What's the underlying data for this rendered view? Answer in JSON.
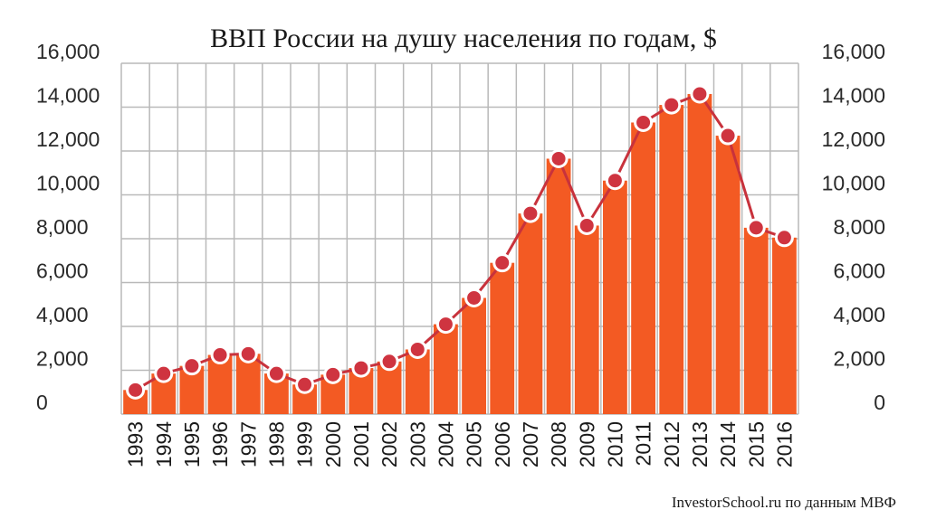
{
  "title": "ВВП России на душу населения по годам, $",
  "source": "InvestorSchool.ru по данным МВФ",
  "colors": {
    "bar": "#f35a23",
    "line": "#c8323c",
    "marker_fill": "#cf3440",
    "marker_stroke": "#ffffff",
    "grid": "#b9b9b9"
  },
  "chart_data": {
    "type": "bar",
    "categories": [
      "1993",
      "1994",
      "1995",
      "1996",
      "1997",
      "1998",
      "1999",
      "2000",
      "2001",
      "2002",
      "2003",
      "2004",
      "2005",
      "2006",
      "2007",
      "2008",
      "2009",
      "2010",
      "2011",
      "2012",
      "2013",
      "2014",
      "2015",
      "2016"
    ],
    "values": [
      1100,
      1850,
      2200,
      2700,
      2750,
      1850,
      1350,
      1800,
      2100,
      2400,
      2950,
      4100,
      5300,
      6900,
      9150,
      11650,
      8600,
      10650,
      13300,
      14100,
      14600,
      12700,
      8500,
      8050
    ],
    "xlabel": "",
    "ylabel": "",
    "ylim": [
      0,
      16000
    ],
    "yticks": [
      "0",
      "2,000",
      "4,000",
      "6,000",
      "8,000",
      "10,000",
      "12,000",
      "14,000",
      "16,000"
    ],
    "overlay": "line with circle markers through bar tops",
    "grid": true,
    "legend": "none"
  }
}
